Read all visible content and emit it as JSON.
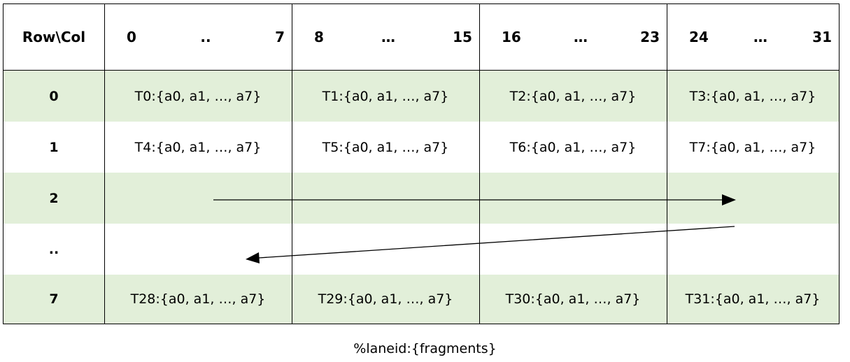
{
  "table": {
    "corner_label": "Row\\Col",
    "column_groups": [
      {
        "start": "0",
        "mid": "..",
        "end": "7"
      },
      {
        "start": "8",
        "mid": "…",
        "end": "15"
      },
      {
        "start": "16",
        "mid": "…",
        "end": "23"
      },
      {
        "start": "24",
        "mid": "…",
        "end": "31"
      }
    ],
    "rows": [
      {
        "label": "0",
        "cells": [
          "T0:{a0, a1, …, a7}",
          "T1:{a0, a1, …, a7}",
          "T2:{a0, a1, …, a7}",
          "T3:{a0, a1, …, a7}"
        ]
      },
      {
        "label": "1",
        "cells": [
          "T4:{a0, a1, …, a7}",
          "T5:{a0, a1, …, a7}",
          "T6:{a0, a1, …, a7}",
          "T7:{a0, a1, …, a7}"
        ]
      },
      {
        "label": "2",
        "cells": [
          "",
          "",
          "",
          ""
        ]
      },
      {
        "label": "..",
        "cells": [
          "",
          "",
          "",
          ""
        ]
      },
      {
        "label": "7",
        "cells": [
          "T28:{a0, a1, …, a7}",
          "T29:{a0, a1, …, a7}",
          "T30:{a0, a1, …, a7}",
          "T31:{a0, a1, …, a7}"
        ]
      }
    ]
  },
  "caption": "%laneid:{fragments}"
}
